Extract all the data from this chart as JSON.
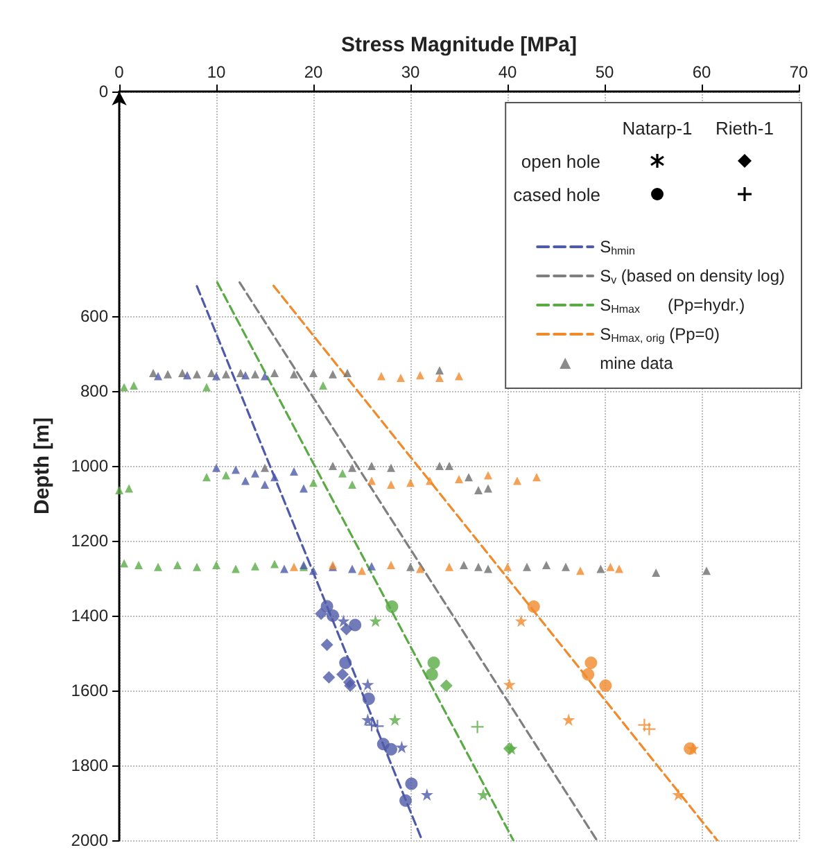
{
  "chart_data": {
    "type": "scatter",
    "xlabel": "Stress Magnitude [MPa]",
    "ylabel": "Depth [m]",
    "xlim": [
      0,
      70
    ],
    "xticks": [
      0,
      10,
      20,
      30,
      40,
      50,
      60,
      70
    ],
    "ylim": [
      2000,
      0
    ],
    "yticks": [
      0,
      600,
      800,
      1000,
      1200,
      1400,
      1600,
      1800,
      2000
    ],
    "grid": true,
    "legend": "top right",
    "annotations": [
      "Natarp-1",
      "Rieth-1",
      "open hole",
      "cased hole"
    ],
    "series": [
      {
        "type": "line",
        "name": "S$_{hmin}$",
        "color": "#4f5aa8",
        "line_style": "dashed",
        "marker": "none",
        "x": [
          8.0,
          31.2
        ],
        "values": [
          520,
          2000
        ]
      },
      {
        "type": "line",
        "name": "S$_{v}$ (based on density log)",
        "color": "#7f7f7f",
        "line_style": "dashed",
        "marker": "none",
        "x": [
          12.4,
          49.2
        ],
        "values": [
          510,
          2000
        ]
      },
      {
        "type": "line",
        "name": "S$_{Hmax}$      (Pp=hydr.)",
        "color": "#5aab46",
        "line_style": "dashed",
        "marker": "none",
        "x": [
          10.1,
          40.6
        ],
        "values": [
          510,
          2000
        ]
      },
      {
        "type": "line",
        "name": "S$_{Hmax, orig}$ (Pp=0)",
        "color": "#f08a2c",
        "line_style": "dashed",
        "marker": "none",
        "x": [
          15.9,
          61.6
        ],
        "values": [
          519,
          2000
        ]
      },
      {
        "color": "#4f5aa8",
        "marker": "circle",
        "x": [
          21.4,
          22.0,
          24.3,
          23.3,
          25.7,
          27.2,
          28.0,
          30.1,
          29.5
        ],
        "values": [
          1375,
          1400,
          1425,
          1526,
          1622,
          1743,
          1757,
          1849,
          1894
        ]
      },
      {
        "color": "#4f5aa8",
        "marker": "diamond",
        "x": [
          20.8,
          23.4,
          21.4,
          21.6,
          23.0,
          23.7,
          23.8
        ],
        "values": [
          1395,
          1436,
          1478,
          1565,
          1557,
          1578,
          1587
        ]
      },
      {
        "color": "#4f5aa8",
        "marker": "star",
        "x": [
          23.1,
          25.6,
          25.6,
          29.1,
          31.7
        ],
        "values": [
          1414,
          1584,
          1678,
          1751,
          1878
        ]
      },
      {
        "color": "#4f5aa8",
        "marker": "cross",
        "x": [
          26.0,
          26.6
        ],
        "values": [
          1692,
          1695
        ]
      },
      {
        "color": "#5aab46",
        "marker": "circle",
        "x": [
          28.1,
          32.4,
          32.2
        ],
        "values": [
          1376,
          1526,
          1557
        ]
      },
      {
        "color": "#5aab46",
        "marker": "diamond",
        "x": [
          33.7,
          40.2
        ],
        "values": [
          1587,
          1755
        ]
      },
      {
        "color": "#5aab46",
        "marker": "star",
        "x": [
          26.4,
          28.4,
          40.4,
          37.5
        ],
        "values": [
          1414,
          1678,
          1755,
          1878
        ]
      },
      {
        "color": "#5aab46",
        "marker": "cross",
        "x": [
          36.9
        ],
        "values": [
          1697
        ]
      },
      {
        "color": "#f08a2c",
        "marker": "circle",
        "x": [
          42.7,
          48.6,
          48.3,
          50.1,
          58.8
        ],
        "values": [
          1376,
          1526,
          1557,
          1587,
          1755
        ]
      },
      {
        "color": "#f08a2c",
        "marker": "star",
        "x": [
          41.4,
          40.2,
          46.3,
          59.1,
          57.6
        ],
        "values": [
          1414,
          1584,
          1678,
          1755,
          1878
        ]
      },
      {
        "color": "#f08a2c",
        "marker": "cross",
        "x": [
          54.1,
          54.6
        ],
        "values": [
          1692,
          1703
        ]
      },
      {
        "name": "mine data",
        "marker": "triangle",
        "x": [
          3.5,
          5,
          6.5,
          8,
          9.5,
          11,
          12.5,
          14,
          16,
          18,
          20,
          22,
          23.5,
          33,
          4,
          7,
          10,
          13,
          15,
          27,
          29,
          31,
          33,
          35,
          0.5,
          1.5,
          9,
          21,
          22,
          24,
          26,
          28,
          33,
          34,
          37,
          38,
          36,
          15,
          10,
          12,
          14,
          16,
          18,
          13,
          19,
          15,
          0,
          1,
          9,
          11,
          20,
          23,
          24,
          26,
          28,
          30,
          32,
          35,
          38,
          41,
          43,
          0.5,
          2,
          4,
          6,
          8,
          10,
          12,
          14,
          16,
          19,
          17,
          19,
          20,
          22,
          24,
          26,
          18,
          22,
          25,
          28,
          31,
          34,
          40,
          47.5,
          50.6,
          51.5,
          30,
          35.5,
          37,
          38,
          42,
          44,
          46,
          49.6,
          55.3,
          60.5
        ],
        "values": [
          752,
          755,
          752,
          755,
          752,
          755,
          752,
          755,
          752,
          755,
          752,
          755,
          752,
          745,
          760,
          758,
          760,
          758,
          760,
          760,
          765,
          758,
          765,
          760,
          790,
          785,
          790,
          785,
          1000,
          1005,
          1000,
          1005,
          1000,
          1000,
          1065,
          1060,
          1030,
          1005,
          1005,
          1010,
          1020,
          1030,
          1015,
          1040,
          1060,
          1050,
          1065,
          1060,
          1030,
          1025,
          1045,
          1020,
          1050,
          1040,
          1050,
          1045,
          1040,
          1035,
          1025,
          1040,
          1030,
          1260,
          1265,
          1270,
          1265,
          1270,
          1265,
          1275,
          1268,
          1262,
          1270,
          1275,
          1265,
          1280,
          1270,
          1275,
          1268,
          1270,
          1265,
          1280,
          1265,
          1275,
          1270,
          1270,
          1280,
          1270,
          1275,
          1270,
          1265,
          1270,
          1275,
          1270,
          1265,
          1270,
          1275,
          1285,
          1280
        ],
        "colors": [
          "#6e6e6e",
          "#6e6e6e",
          "#6e6e6e",
          "#6e6e6e",
          "#6e6e6e",
          "#6e6e6e",
          "#6e6e6e",
          "#6e6e6e",
          "#6e6e6e",
          "#6e6e6e",
          "#6e6e6e",
          "#6e6e6e",
          "#6e6e6e",
          "#6e6e6e",
          "#4f5aa8",
          "#4f5aa8",
          "#4f5aa8",
          "#4f5aa8",
          "#4f5aa8",
          "#f08a2c",
          "#f08a2c",
          "#f08a2c",
          "#f08a2c",
          "#f08a2c",
          "#5aab46",
          "#5aab46",
          "#5aab46",
          "#5aab46",
          "#6e6e6e",
          "#6e6e6e",
          "#6e6e6e",
          "#6e6e6e",
          "#6e6e6e",
          "#6e6e6e",
          "#6e6e6e",
          "#6e6e6e",
          "#6e6e6e",
          "#6e6e6e",
          "#4f5aa8",
          "#4f5aa8",
          "#4f5aa8",
          "#4f5aa8",
          "#4f5aa8",
          "#4f5aa8",
          "#4f5aa8",
          "#4f5aa8",
          "#5aab46",
          "#5aab46",
          "#5aab46",
          "#5aab46",
          "#5aab46",
          "#5aab46",
          "#5aab46",
          "#f08a2c",
          "#f08a2c",
          "#f08a2c",
          "#f08a2c",
          "#f08a2c",
          "#f08a2c",
          "#f08a2c",
          "#f08a2c",
          "#5aab46",
          "#5aab46",
          "#5aab46",
          "#5aab46",
          "#5aab46",
          "#5aab46",
          "#5aab46",
          "#5aab46",
          "#5aab46",
          "#5aab46",
          "#4f5aa8",
          "#4f5aa8",
          "#4f5aa8",
          "#4f5aa8",
          "#4f5aa8",
          "#4f5aa8",
          "#f08a2c",
          "#f08a2c",
          "#f08a2c",
          "#f08a2c",
          "#f08a2c",
          "#f08a2c",
          "#f08a2c",
          "#f08a2c",
          "#f08a2c",
          "#f08a2c",
          "#6e6e6e",
          "#6e6e6e",
          "#6e6e6e",
          "#6e6e6e",
          "#6e6e6e",
          "#6e6e6e",
          "#6e6e6e",
          "#6e6e6e",
          "#6e6e6e",
          "#6e6e6e"
        ]
      }
    ]
  }
}
